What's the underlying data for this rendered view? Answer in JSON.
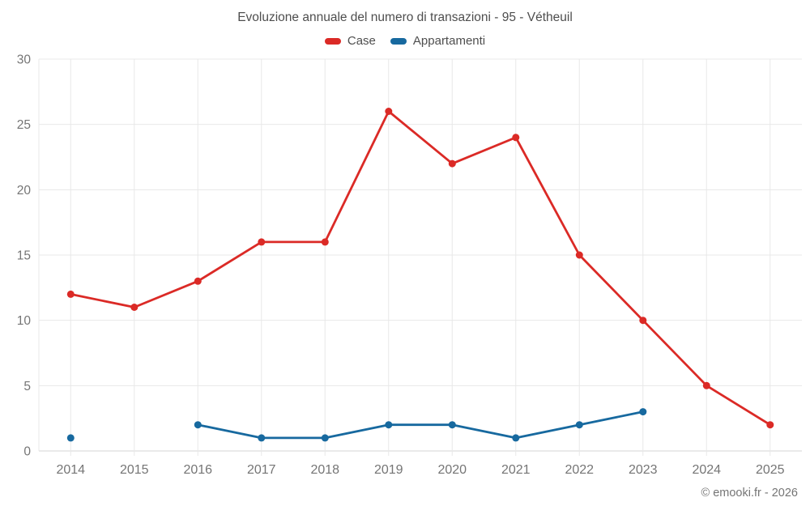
{
  "header": {
    "title": "Evoluzione annuale del numero di transazioni - 95 - Vétheuil"
  },
  "footer": {
    "credit": "© emooki.fr - 2026"
  },
  "colors": {
    "case_red": "#db2a26",
    "appartamenti_blue": "#17699f",
    "grid": "#e8e8e8",
    "axis_line": "#d6d6d6",
    "tick_text": "#757575",
    "title_text": "#4e4e4e",
    "background": "#ffffff"
  },
  "chart_data": {
    "type": "line",
    "title": "Evoluzione annuale del numero di transazioni - 95 - Vétheuil",
    "categories": [
      "2014",
      "2015",
      "2016",
      "2017",
      "2018",
      "2019",
      "2020",
      "2021",
      "2022",
      "2023",
      "2024",
      "2025"
    ],
    "series": [
      {
        "name": "Case",
        "color": "#db2a26",
        "values": [
          12,
          11,
          13,
          16,
          16,
          26,
          22,
          24,
          15,
          10,
          5,
          2
        ]
      },
      {
        "name": "Appartamenti",
        "color": "#17699f",
        "values": [
          1,
          null,
          2,
          1,
          1,
          2,
          2,
          1,
          2,
          3,
          null,
          null
        ]
      }
    ],
    "xlabel": "",
    "ylabel": "",
    "ylim": [
      0,
      30
    ],
    "yticks": [
      0,
      5,
      10,
      15,
      20,
      25,
      30
    ],
    "grid": true,
    "legend_position": "top"
  }
}
